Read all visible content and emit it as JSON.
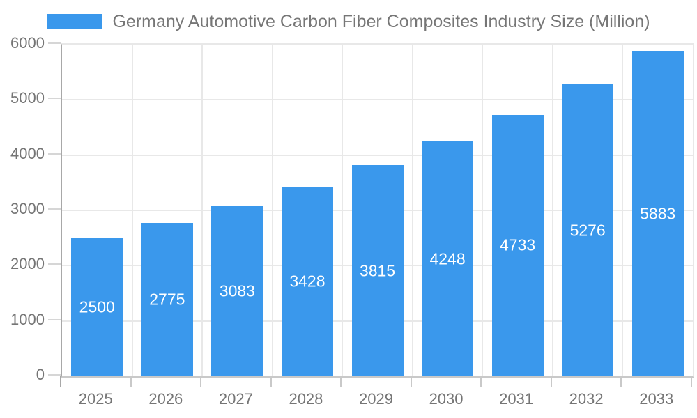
{
  "legend": {
    "label": "Germany Automotive Carbon Fiber Composites Industry Size (Million)",
    "swatch_color": "#3a98ec"
  },
  "chart_data": {
    "type": "bar",
    "title": "Germany Automotive Carbon Fiber Composites Industry Size (Million)",
    "series_name": "Germany Automotive Carbon Fiber Composites Industry Size (Million)",
    "categories": [
      "2025",
      "2026",
      "2027",
      "2028",
      "2029",
      "2030",
      "2031",
      "2032",
      "2033"
    ],
    "values": [
      2500,
      2775,
      3083,
      3428,
      3815,
      4248,
      4733,
      5276,
      5883
    ],
    "xlabel": "",
    "ylabel": "",
    "ylim": [
      0,
      6000
    ],
    "ytick_interval": 1000,
    "ytick_labels": [
      "0",
      "1000",
      "2000",
      "3000",
      "4000",
      "5000",
      "6000"
    ],
    "grid": true,
    "legend_position": "top",
    "value_labels": "inside-center",
    "colors": {
      "bar": "#3a98ec",
      "value_label": "#ffffff",
      "axis_text": "#757575",
      "legend_text": "#767676",
      "gridline": "#e8e8e8",
      "y_axis_line": "#a8a8a8",
      "x_axis_line": "#c9c9c9"
    }
  }
}
